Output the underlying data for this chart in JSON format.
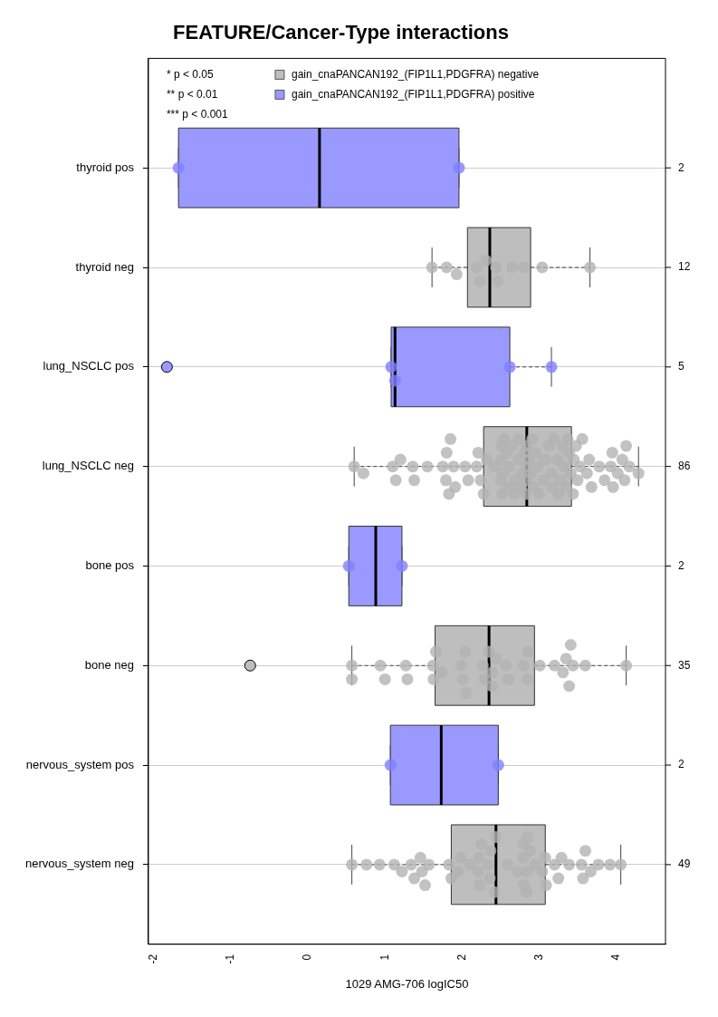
{
  "chart_data": {
    "type": "box",
    "orientation": "horizontal",
    "title": "FEATURE/Cancer-Type interactions",
    "xlabel": "1029 AMG-706 logIC50",
    "categories": [
      "thyroid pos",
      "thyroid neg",
      "lung_NSCLC pos",
      "lung_NSCLC neg",
      "bone pos",
      "bone neg",
      "nervous_system pos",
      "nervous_system neg"
    ],
    "xlim": [
      -2.07,
      4.64
    ],
    "xticks": [
      -2,
      -1,
      0,
      1,
      2,
      3,
      4
    ],
    "grid": "y",
    "legend": "top",
    "marker": "circle",
    "series": [
      {
        "name": "gain_cnaPANCAN192_(FIP1L1,PDGFRA) negative",
        "color": "#bebebe",
        "type": "box",
        "boxes": [
          null,
          {
            "low": 1.61,
            "q1": 2.07,
            "median": 2.36,
            "q3": 2.89,
            "high": 3.66
          },
          null,
          {
            "low": 0.6,
            "q1": 2.28,
            "median": 2.84,
            "q3": 3.42,
            "high": 4.29
          },
          null,
          {
            "low": 0.57,
            "q1": 1.65,
            "median": 2.35,
            "q3": 2.94,
            "high": 4.13,
            "outliers": [
              -0.75
            ]
          },
          null,
          {
            "low": 0.57,
            "q1": 1.86,
            "median": 2.44,
            "q3": 3.08,
            "high": 4.06
          }
        ]
      },
      {
        "name": "gain_cnaPANCAN192_(FIP1L1,PDGFRA) positive",
        "color": "#9999ff",
        "type": "box",
        "boxes": [
          {
            "low": -1.68,
            "q1": -1.68,
            "median": 0.15,
            "q3": 1.96,
            "high": 1.96
          },
          null,
          {
            "low": 1.08,
            "q1": 1.08,
            "median": 1.13,
            "q3": 2.62,
            "high": 3.16,
            "outliers": [
              -1.83
            ]
          },
          null,
          {
            "low": 0.53,
            "q1": 0.53,
            "median": 0.88,
            "q3": 1.22,
            "high": 1.22
          },
          null,
          {
            "low": 1.07,
            "q1": 1.07,
            "median": 1.73,
            "q3": 2.47,
            "high": 2.47
          },
          null
        ]
      },
      {
        "type": "scatter",
        "color": "#b3b3b3",
        "x": [
          "thyroid neg",
          "thyroid neg",
          "thyroid neg",
          "thyroid neg",
          "thyroid neg",
          "thyroid neg",
          "thyroid neg",
          "thyroid neg",
          "thyroid neg",
          "thyroid neg",
          "thyroid neg",
          "thyroid neg",
          "lung_NSCLC neg",
          "lung_NSCLC neg",
          "lung_NSCLC neg",
          "lung_NSCLC neg",
          "lung_NSCLC neg",
          "lung_NSCLC neg",
          "lung_NSCLC neg",
          "lung_NSCLC neg",
          "lung_NSCLC neg",
          "lung_NSCLC neg",
          "lung_NSCLC neg",
          "lung_NSCLC neg",
          "lung_NSCLC neg",
          "lung_NSCLC neg",
          "lung_NSCLC neg",
          "lung_NSCLC neg",
          "lung_NSCLC neg",
          "lung_NSCLC neg",
          "lung_NSCLC neg",
          "lung_NSCLC neg",
          "lung_NSCLC neg",
          "lung_NSCLC neg",
          "lung_NSCLC neg",
          "lung_NSCLC neg",
          "lung_NSCLC neg",
          "lung_NSCLC neg",
          "lung_NSCLC neg",
          "lung_NSCLC neg",
          "lung_NSCLC neg",
          "lung_NSCLC neg",
          "lung_NSCLC neg",
          "lung_NSCLC neg",
          "lung_NSCLC neg",
          "lung_NSCLC neg",
          "lung_NSCLC neg",
          "lung_NSCLC neg",
          "lung_NSCLC neg",
          "lung_NSCLC neg",
          "lung_NSCLC neg",
          "lung_NSCLC neg",
          "lung_NSCLC neg",
          "lung_NSCLC neg",
          "lung_NSCLC neg",
          "lung_NSCLC neg",
          "lung_NSCLC neg",
          "lung_NSCLC neg",
          "lung_NSCLC neg",
          "lung_NSCLC neg",
          "lung_NSCLC neg",
          "lung_NSCLC neg",
          "lung_NSCLC neg",
          "lung_NSCLC neg",
          "lung_NSCLC neg",
          "lung_NSCLC neg",
          "lung_NSCLC neg",
          "lung_NSCLC neg",
          "lung_NSCLC neg",
          "lung_NSCLC neg",
          "lung_NSCLC neg",
          "lung_NSCLC neg",
          "lung_NSCLC neg",
          "lung_NSCLC neg",
          "lung_NSCLC neg",
          "lung_NSCLC neg",
          "lung_NSCLC neg",
          "lung_NSCLC neg",
          "lung_NSCLC neg",
          "lung_NSCLC neg",
          "lung_NSCLC neg",
          "lung_NSCLC neg",
          "lung_NSCLC neg",
          "lung_NSCLC neg",
          "lung_NSCLC neg",
          "lung_NSCLC neg",
          "lung_NSCLC neg",
          "lung_NSCLC neg",
          "lung_NSCLC neg",
          "lung_NSCLC neg",
          "lung_NSCLC neg",
          "lung_NSCLC neg",
          "lung_NSCLC neg",
          "lung_NSCLC neg",
          "lung_NSCLC neg",
          "lung_NSCLC neg",
          "lung_NSCLC neg",
          "lung_NSCLC neg",
          "bone neg",
          "bone neg",
          "bone neg",
          "bone neg",
          "bone neg",
          "bone neg",
          "bone neg",
          "bone neg",
          "bone neg",
          "bone neg",
          "bone neg",
          "bone neg",
          "bone neg",
          "bone neg",
          "bone neg",
          "bone neg",
          "bone neg",
          "bone neg",
          "bone neg",
          "bone neg",
          "bone neg",
          "bone neg",
          "bone neg",
          "bone neg",
          "bone neg",
          "bone neg",
          "bone neg",
          "bone neg",
          "bone neg",
          "bone neg",
          "bone neg",
          "bone neg",
          "bone neg",
          "bone neg",
          "nervous_system neg",
          "nervous_system neg",
          "nervous_system neg",
          "nervous_system neg",
          "nervous_system neg",
          "nervous_system neg",
          "nervous_system neg",
          "nervous_system neg",
          "nervous_system neg",
          "nervous_system neg",
          "nervous_system neg",
          "nervous_system neg",
          "nervous_system neg",
          "nervous_system neg",
          "nervous_system neg",
          "nervous_system neg",
          "nervous_system neg",
          "nervous_system neg",
          "nervous_system neg",
          "nervous_system neg",
          "nervous_system neg",
          "nervous_system neg",
          "nervous_system neg",
          "nervous_system neg",
          "nervous_system neg",
          "nervous_system neg",
          "nervous_system neg",
          "nervous_system neg",
          "nervous_system neg",
          "nervous_system neg",
          "nervous_system neg",
          "nervous_system neg",
          "nervous_system neg",
          "nervous_system neg",
          "nervous_system neg",
          "nervous_system neg",
          "nervous_system neg",
          "nervous_system neg",
          "nervous_system neg",
          "nervous_system neg",
          "nervous_system neg",
          "nervous_system neg",
          "nervous_system neg",
          "nervous_system neg",
          "nervous_system neg",
          "nervous_system neg",
          "nervous_system neg",
          "nervous_system neg",
          "nervous_system neg"
        ],
        "values": [
          1.61,
          1.8,
          1.93,
          2.19,
          2.23,
          2.31,
          2.44,
          2.46,
          2.65,
          2.8,
          3.04,
          3.66,
          0.6,
          0.72,
          1.1,
          1.14,
          1.2,
          1.36,
          1.38,
          1.55,
          1.75,
          1.79,
          1.8,
          1.83,
          1.85,
          1.89,
          1.91,
          2.04,
          2.08,
          2.19,
          2.21,
          2.24,
          2.28,
          2.32,
          2.42,
          2.5,
          2.51,
          2.51,
          2.52,
          2.53,
          2.55,
          2.58,
          2.6,
          2.61,
          2.64,
          2.68,
          2.69,
          2.73,
          2.74,
          2.77,
          2.77,
          2.81,
          2.83,
          2.83,
          2.84,
          2.84,
          2.87,
          2.9,
          2.91,
          2.93,
          2.96,
          2.98,
          3.0,
          3.05,
          3.08,
          3.13,
          3.16,
          3.17,
          3.19,
          3.24,
          3.25,
          3.28,
          3.31,
          3.32,
          3.35,
          3.37,
          3.39,
          3.41,
          3.44,
          3.45,
          3.48,
          3.5,
          3.53,
          3.56,
          3.62,
          3.65,
          3.68,
          3.78,
          3.85,
          3.93,
          3.95,
          3.96,
          4.02,
          4.08,
          4.11,
          4.13,
          4.17,
          4.29,
          0.57,
          0.57,
          0.94,
          1.0,
          1.27,
          1.29,
          1.62,
          1.63,
          1.66,
          1.74,
          1.99,
          2.01,
          2.04,
          2.05,
          2.27,
          2.29,
          2.35,
          2.39,
          2.39,
          2.44,
          2.57,
          2.6,
          2.8,
          2.85,
          2.86,
          3.01,
          3.2,
          3.31,
          3.35,
          3.39,
          3.41,
          3.44,
          3.6,
          4.13,
          0.57,
          0.76,
          0.93,
          1.12,
          1.22,
          1.34,
          1.38,
          1.46,
          1.48,
          1.52,
          1.57,
          1.83,
          1.86,
          1.95,
          1.98,
          2.1,
          2.21,
          2.22,
          2.23,
          2.25,
          2.34,
          2.36,
          2.37,
          2.42,
          2.44,
          2.59,
          2.72,
          2.79,
          2.8,
          2.8,
          2.84,
          2.84,
          2.85,
          2.88,
          2.95,
          3.04,
          3.08,
          3.09,
          3.2,
          3.25,
          3.29,
          3.39,
          3.55,
          3.57,
          3.6,
          3.67,
          3.77,
          3.92,
          4.06
        ]
      },
      {
        "type": "scatter",
        "color": "#7f7fff",
        "x": [
          "thyroid pos",
          "thyroid pos",
          "lung_NSCLC pos",
          "lung_NSCLC pos",
          "lung_NSCLC pos",
          "lung_NSCLC pos",
          "bone pos",
          "bone pos",
          "nervous_system pos",
          "nervous_system pos"
        ],
        "values": [
          -1.68,
          1.96,
          1.08,
          1.13,
          2.62,
          3.16,
          0.53,
          1.22,
          1.07,
          2.47
        ]
      }
    ],
    "annotations": [
      "* p < 0.05",
      "** p < 0.01",
      "*** p < 0.001",
      "2",
      "12",
      "5",
      "86",
      "2",
      "35",
      "2",
      "49"
    ]
  }
}
